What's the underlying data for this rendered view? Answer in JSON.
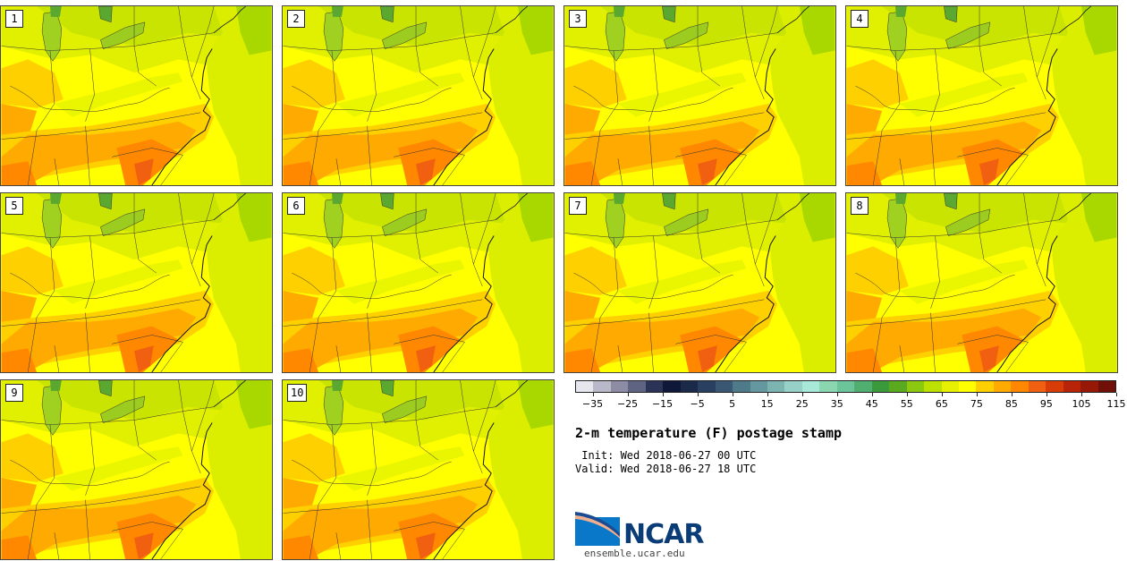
{
  "panels": [
    {
      "label": "1"
    },
    {
      "label": "2"
    },
    {
      "label": "3"
    },
    {
      "label": "4"
    },
    {
      "label": "5"
    },
    {
      "label": "6"
    },
    {
      "label": "7"
    },
    {
      "label": "8"
    },
    {
      "label": "9"
    },
    {
      "label": "10"
    }
  ],
  "colorbar": {
    "colors": [
      "#e6e6ee",
      "#b8b8c8",
      "#8c8ca4",
      "#5f6482",
      "#2b3456",
      "#10183a",
      "#1a2a48",
      "#2a4060",
      "#3a5874",
      "#4e7a8a",
      "#64989e",
      "#7cb4b2",
      "#96d0c6",
      "#a8e8d8",
      "#8ad6b0",
      "#6cc49a",
      "#4fae70",
      "#3a9a3c",
      "#5aaa20",
      "#8cc810",
      "#bce000",
      "#e6f000",
      "#ffff00",
      "#ffd000",
      "#ffaa00",
      "#ff8800",
      "#f06010",
      "#d83c08",
      "#b82408",
      "#981808",
      "#701008"
    ],
    "tick_labels": [
      "−35",
      "−25",
      "−15",
      "−5",
      "5",
      "15",
      "25",
      "35",
      "45",
      "55",
      "65",
      "75",
      "85",
      "95",
      "105",
      "115"
    ]
  },
  "title": "2-m temperature (F) postage stamp",
  "init": " Init: Wed 2018-06-27 00 UTC",
  "valid": "Valid: Wed 2018-06-27 18 UTC",
  "logo_text": "NCAR",
  "site": "ensemble.ucar.edu"
}
